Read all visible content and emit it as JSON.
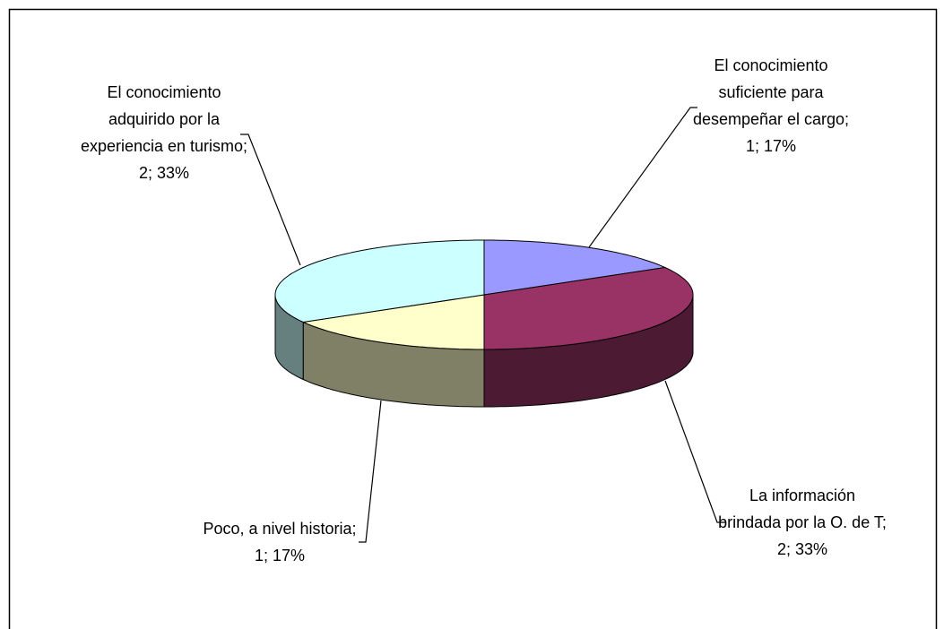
{
  "chart_data": {
    "type": "pie3d",
    "values": [
      1,
      2,
      1,
      2
    ],
    "value_labels": [
      "El conocimiento suficiente para desempeñar el cargo; 1; 17%",
      "La información brindada por la O. de T; 2; 33%",
      "Poco, a nivel historia; 1; 17%",
      "El conocimiento adquirido por la experiencia en turismo; 2; 33%"
    ],
    "colors": [
      "#9999ff",
      "#993366",
      "#ffffcc",
      "#ccffff"
    ],
    "side_colors": [
      "#5c5c99",
      "#4d1a33",
      "#808066",
      "#668080"
    ]
  }
}
